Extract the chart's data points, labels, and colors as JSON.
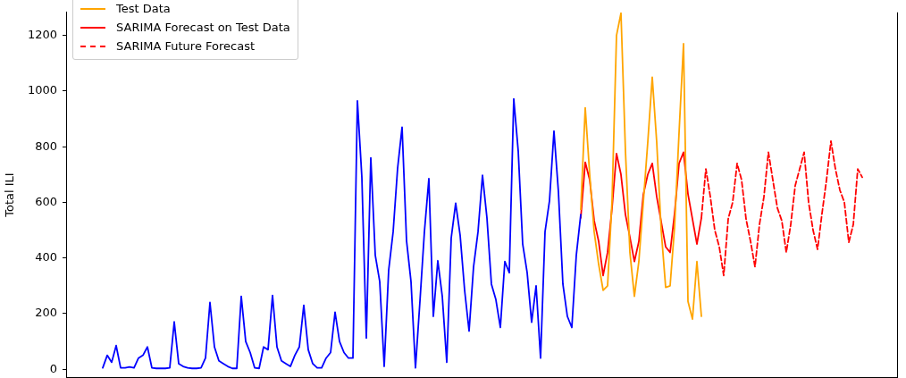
{
  "chart_data": {
    "type": "line",
    "ylabel": "Total ILI",
    "categories": [
      null,
      null,
      null,
      null,
      null,
      null,
      null,
      null,
      null,
      null,
      null,
      null,
      null,
      null,
      null,
      null,
      null,
      null,
      null,
      null,
      null,
      null,
      null,
      null,
      null,
      null,
      null,
      null,
      null,
      null,
      null,
      null,
      null,
      null,
      null,
      null,
      null,
      null,
      null,
      null,
      null,
      null,
      null,
      null,
      null,
      null,
      null,
      null,
      null,
      null,
      null,
      null,
      null,
      null,
      null,
      null,
      null,
      null,
      null,
      null,
      null,
      null,
      null,
      null,
      null,
      null,
      null,
      null,
      null,
      null,
      null,
      null,
      null,
      null,
      null,
      null,
      null,
      null,
      null,
      null,
      null,
      null,
      null,
      null,
      null,
      null,
      null,
      null,
      null,
      null,
      null,
      null,
      null,
      null,
      null,
      null,
      null,
      null,
      null,
      null,
      null,
      null,
      null,
      null,
      null,
      null,
      null,
      null,
      null,
      null,
      null,
      null,
      null,
      null,
      null,
      null,
      null,
      null,
      null,
      null,
      null,
      null,
      null,
      null,
      null,
      null,
      null,
      null,
      null,
      null,
      null,
      null,
      null,
      null,
      null,
      null,
      null,
      null,
      null,
      null,
      null,
      null,
      null,
      null,
      null,
      null,
      null,
      null,
      null,
      null,
      null,
      null,
      null,
      null,
      null,
      null,
      null,
      null,
      null,
      null,
      null,
      null,
      null,
      null,
      null,
      null,
      null,
      null,
      null,
      null,
      null
    ],
    "series": [
      {
        "color": "#0000ff",
        "values": [
          5,
          50,
          25,
          85,
          5,
          5,
          8,
          5,
          40,
          50,
          80,
          5,
          3,
          3,
          3,
          5,
          170,
          20,
          10,
          5,
          3,
          3,
          5,
          40,
          240,
          80,
          30,
          20,
          10,
          3,
          3,
          262,
          100,
          60,
          5,
          3,
          80,
          70,
          265,
          80,
          30,
          20,
          10,
          50,
          80,
          230,
          70,
          20,
          5,
          5,
          40,
          60,
          205,
          100,
          60,
          40,
          40,
          965,
          690,
          112,
          760,
          410,
          315,
          10,
          356,
          494,
          722,
          870,
          462,
          315,
          5,
          244,
          494,
          685,
          190,
          390,
          262,
          25,
          472,
          597,
          481,
          284,
          137,
          368,
          494,
          697,
          544,
          306,
          250,
          150,
          387,
          347,
          972,
          784,
          450,
          347,
          169,
          300,
          40,
          494,
          606,
          856,
          637,
          306,
          190,
          150,
          410,
          556,
          null,
          null,
          null,
          null,
          null,
          null,
          null,
          null,
          null,
          null,
          null,
          null,
          null,
          null,
          null,
          null,
          null,
          null,
          null,
          null,
          null,
          null,
          null,
          null,
          null,
          null,
          null,
          null,
          null,
          null,
          null,
          null,
          null,
          null,
          null,
          null,
          null,
          null,
          null,
          null,
          null,
          null,
          null,
          null,
          null,
          null,
          null,
          null,
          null,
          null,
          null,
          null,
          null,
          null,
          null,
          null,
          null,
          null,
          null,
          null,
          null,
          null,
          null
        ]
      },
      {
        "name": "Test Data",
        "color": "#ffa500",
        "values": [
          null,
          null,
          null,
          null,
          null,
          null,
          null,
          null,
          null,
          null,
          null,
          null,
          null,
          null,
          null,
          null,
          null,
          null,
          null,
          null,
          null,
          null,
          null,
          null,
          null,
          null,
          null,
          null,
          null,
          null,
          null,
          null,
          null,
          null,
          null,
          null,
          null,
          null,
          null,
          null,
          null,
          null,
          null,
          null,
          null,
          null,
          null,
          null,
          null,
          null,
          null,
          null,
          null,
          null,
          null,
          null,
          null,
          null,
          null,
          null,
          null,
          null,
          null,
          null,
          null,
          null,
          null,
          null,
          null,
          null,
          null,
          null,
          null,
          null,
          null,
          null,
          null,
          null,
          null,
          null,
          null,
          null,
          null,
          null,
          null,
          null,
          null,
          null,
          null,
          null,
          null,
          null,
          null,
          null,
          null,
          null,
          null,
          null,
          null,
          null,
          null,
          null,
          null,
          null,
          null,
          null,
          null,
          575,
          940,
          700,
          494,
          378,
          284,
          300,
          606,
          1200,
          1280,
          784,
          420,
          262,
          387,
          600,
          816,
          1050,
          816,
          500,
          294,
          300,
          512,
          850,
          1170,
          244,
          180,
          387,
          190,
          null,
          null,
          null,
          null,
          null,
          null,
          null,
          null,
          null,
          null,
          null,
          null,
          null,
          null,
          null,
          null,
          null,
          null,
          null,
          null,
          null,
          null,
          null,
          null,
          null,
          null,
          null,
          null,
          null,
          null,
          null,
          null,
          null,
          null,
          null,
          null
        ]
      },
      {
        "name": "SARIMA Forecast on Test Data",
        "color": "#ff0000",
        "line_style": "solid",
        "values": [
          null,
          null,
          null,
          null,
          null,
          null,
          null,
          null,
          null,
          null,
          null,
          null,
          null,
          null,
          null,
          null,
          null,
          null,
          null,
          null,
          null,
          null,
          null,
          null,
          null,
          null,
          null,
          null,
          null,
          null,
          null,
          null,
          null,
          null,
          null,
          null,
          null,
          null,
          null,
          null,
          null,
          null,
          null,
          null,
          null,
          null,
          null,
          null,
          null,
          null,
          null,
          null,
          null,
          null,
          null,
          null,
          null,
          null,
          null,
          null,
          null,
          null,
          null,
          null,
          null,
          null,
          null,
          null,
          null,
          null,
          null,
          null,
          null,
          null,
          null,
          null,
          null,
          null,
          null,
          null,
          null,
          null,
          null,
          null,
          null,
          null,
          null,
          null,
          null,
          null,
          null,
          null,
          null,
          null,
          null,
          null,
          null,
          null,
          null,
          null,
          null,
          null,
          null,
          null,
          null,
          null,
          null,
          544,
          744,
          681,
          534,
          460,
          337,
          420,
          580,
          775,
          700,
          556,
          475,
          387,
          459,
          628,
          700,
          740,
          620,
          530,
          440,
          420,
          560,
          740,
          780,
          630,
          540,
          450,
          544,
          null,
          null,
          null,
          null,
          null,
          null,
          null,
          null,
          null,
          null,
          null,
          null,
          null,
          null,
          null,
          null,
          null,
          null,
          null,
          null,
          null,
          null,
          null,
          null,
          null,
          null,
          null,
          null,
          null,
          null,
          null,
          null,
          null,
          null,
          null,
          null
        ]
      },
      {
        "name": "SARIMA Future Forecast",
        "color": "#ff0000",
        "line_style": "dashed",
        "values": [
          null,
          null,
          null,
          null,
          null,
          null,
          null,
          null,
          null,
          null,
          null,
          null,
          null,
          null,
          null,
          null,
          null,
          null,
          null,
          null,
          null,
          null,
          null,
          null,
          null,
          null,
          null,
          null,
          null,
          null,
          null,
          null,
          null,
          null,
          null,
          null,
          null,
          null,
          null,
          null,
          null,
          null,
          null,
          null,
          null,
          null,
          null,
          null,
          null,
          null,
          null,
          null,
          null,
          null,
          null,
          null,
          null,
          null,
          null,
          null,
          null,
          null,
          null,
          null,
          null,
          null,
          null,
          null,
          null,
          null,
          null,
          null,
          null,
          null,
          null,
          null,
          null,
          null,
          null,
          null,
          null,
          null,
          null,
          null,
          null,
          null,
          null,
          null,
          null,
          null,
          null,
          null,
          null,
          null,
          null,
          null,
          null,
          null,
          null,
          null,
          null,
          null,
          null,
          null,
          null,
          null,
          null,
          null,
          null,
          null,
          null,
          null,
          null,
          null,
          null,
          null,
          null,
          null,
          null,
          null,
          null,
          null,
          null,
          null,
          null,
          null,
          null,
          null,
          null,
          null,
          null,
          null,
          null,
          null,
          544,
          720,
          620,
          500,
          440,
          337,
          540,
          600,
          740,
          680,
          540,
          460,
          368,
          520,
          620,
          780,
          680,
          580,
          534,
          420,
          520,
          660,
          720,
          780,
          600,
          500,
          431,
          560,
          680,
          820,
          720,
          644,
          600,
          456,
          520,
          720,
          690
        ]
      }
    ],
    "ylim": [
      -29,
      1283
    ],
    "yticks": [
      0,
      200,
      400,
      600,
      800,
      1000,
      1200
    ],
    "grid": false,
    "legend": "top left",
    "tick_labels": "y"
  }
}
